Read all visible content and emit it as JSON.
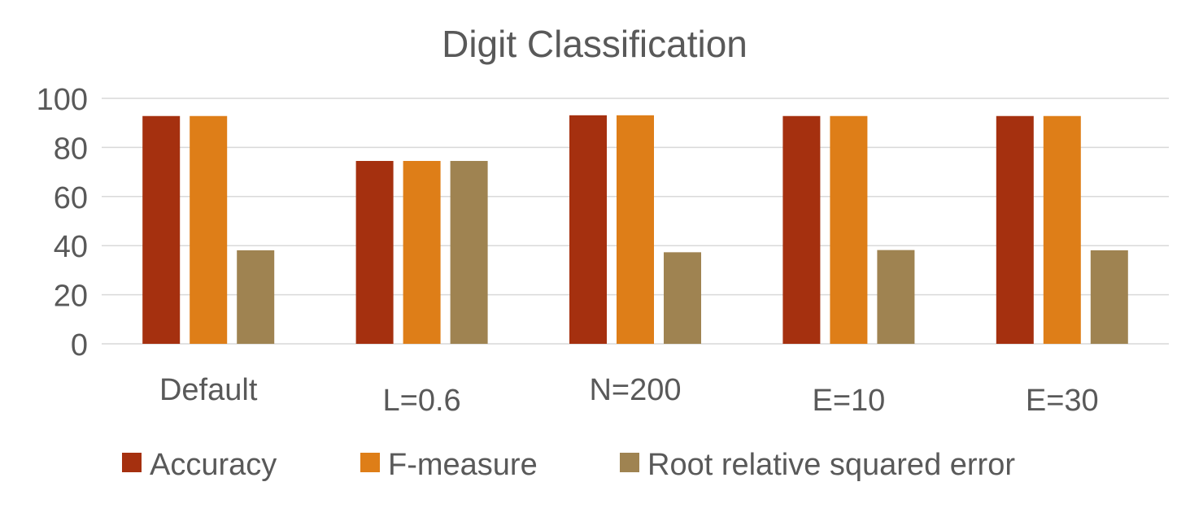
{
  "chart_data": {
    "type": "bar",
    "title": "Digit Classification",
    "categories": [
      "Default",
      "L=0.6",
      "N=200",
      "E=10",
      "E=30"
    ],
    "series": [
      {
        "name": "Accuracy",
        "color": "#A5300F",
        "values": [
          92.8,
          74.5,
          93.1,
          92.8,
          92.8
        ]
      },
      {
        "name": "F-measure",
        "color": "#DE7E18",
        "values": [
          92.8,
          74.5,
          93.1,
          92.8,
          92.8
        ]
      },
      {
        "name": "Root relative squared error",
        "color": "#9F8351",
        "values": [
          38.1,
          74.5,
          37.3,
          38.2,
          38.1
        ]
      }
    ],
    "ylim": [
      0,
      100
    ],
    "yticks": [
      0,
      20,
      40,
      60,
      80,
      100
    ],
    "grid": true,
    "legend_position": "bottom"
  }
}
